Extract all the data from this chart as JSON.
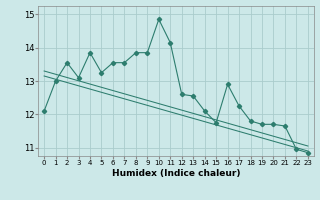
{
  "xlabel": "Humidex (Indice chaleur)",
  "bg_color": "#cce8e8",
  "grid_color": "#aacccc",
  "line_color": "#2d7d6e",
  "xlim": [
    -0.5,
    23.5
  ],
  "ylim": [
    10.75,
    15.25
  ],
  "yticks": [
    11,
    12,
    13,
    14,
    15
  ],
  "xticks": [
    0,
    1,
    2,
    3,
    4,
    5,
    6,
    7,
    8,
    9,
    10,
    11,
    12,
    13,
    14,
    15,
    16,
    17,
    18,
    19,
    20,
    21,
    22,
    23
  ],
  "line1_x": [
    0,
    1,
    2,
    3,
    4,
    5,
    6,
    7,
    8,
    9,
    10,
    11,
    12,
    13,
    14,
    15,
    16,
    17,
    18,
    19,
    20,
    21,
    22,
    23
  ],
  "line1_y": [
    12.1,
    13.0,
    13.55,
    13.1,
    13.85,
    13.25,
    13.55,
    13.55,
    13.85,
    13.85,
    14.85,
    14.15,
    12.6,
    12.55,
    12.1,
    11.75,
    12.9,
    12.25,
    11.8,
    11.7,
    11.7,
    11.65,
    10.95,
    10.85
  ],
  "trend1_x": [
    0,
    23
  ],
  "trend1_y": [
    13.3,
    11.05
  ],
  "trend2_x": [
    0,
    23
  ],
  "trend2_y": [
    13.15,
    10.9
  ]
}
